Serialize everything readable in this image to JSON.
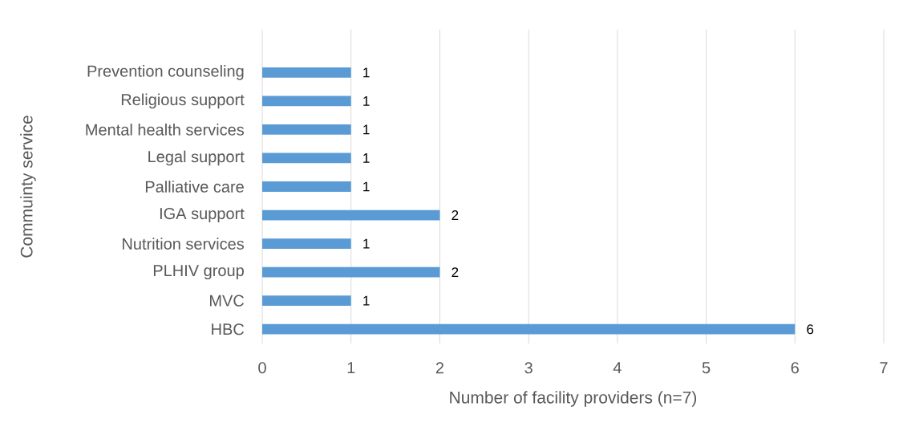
{
  "chart_data": {
    "type": "bar",
    "orientation": "horizontal",
    "xlabel": "Number of facility providers (n=7)",
    "ylabel": "Commuinty service",
    "categories": [
      null,
      "Prevention counseling",
      "Religious support",
      "Mental health services",
      "Legal support",
      "Palliative care",
      "IGA support",
      "Nutrition services",
      "PLHIV group",
      "MVC",
      "HBC"
    ],
    "values": [
      null,
      1,
      1,
      1,
      1,
      1,
      2,
      1,
      2,
      1,
      6
    ],
    "color": "#5b9bd5",
    "xlim": [
      0,
      7
    ],
    "xticks": [
      0,
      1,
      2,
      3,
      4,
      5,
      6,
      7
    ],
    "grid": "x",
    "data_labels": true
  }
}
